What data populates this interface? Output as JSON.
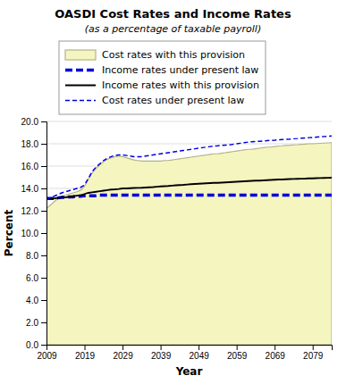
{
  "chart_data": {
    "type": "line",
    "title": "OASDI Cost Rates and Income Rates",
    "subtitle": "(as a percentage of taxable payroll)",
    "xlabel": "Year",
    "ylabel": "Percent",
    "xlim": [
      2009,
      2084
    ],
    "ylim": [
      0.0,
      20.0
    ],
    "xticks": [
      2009,
      2019,
      2029,
      2039,
      2049,
      2059,
      2069,
      2079
    ],
    "yticks": [
      {
        "value": 0.0,
        "label": "0.0"
      },
      {
        "value": 2.0,
        "label": "2.0"
      },
      {
        "value": 4.0,
        "label": "4.0"
      },
      {
        "value": 6.0,
        "label": "6.0"
      },
      {
        "value": 8.0,
        "label": "8.0"
      },
      {
        "value": 10.0,
        "label": "10.0"
      },
      {
        "value": 12.0,
        "label": "12.0"
      },
      {
        "value": 14.0,
        "label": "14.0"
      },
      {
        "value": 16.0,
        "label": "16.0"
      },
      {
        "value": 18.0,
        "label": "18.0"
      },
      {
        "value": 20.0,
        "label": "20.0"
      }
    ],
    "grid": true,
    "legend": "top",
    "x": [
      2009,
      2010,
      2011,
      2012,
      2013,
      2014,
      2015,
      2016,
      2017,
      2018,
      2019,
      2020,
      2021,
      2022,
      2023,
      2024,
      2025,
      2026,
      2027,
      2028,
      2029,
      2030,
      2031,
      2032,
      2033,
      2034,
      2035,
      2036,
      2037,
      2038,
      2039,
      2040,
      2041,
      2042,
      2043,
      2044,
      2045,
      2046,
      2047,
      2048,
      2049,
      2050,
      2051,
      2052,
      2053,
      2054,
      2055,
      2056,
      2057,
      2058,
      2059,
      2060,
      2061,
      2062,
      2063,
      2064,
      2065,
      2066,
      2067,
      2068,
      2069,
      2070,
      2071,
      2072,
      2073,
      2074,
      2075,
      2076,
      2077,
      2078,
      2079,
      2080,
      2081,
      2082,
      2083,
      2084
    ],
    "series": [
      {
        "name": "Cost rates with this provision",
        "type": "area",
        "color": "#f5f5c0",
        "values": [
          12.2,
          12.5,
          12.8,
          13.1,
          13.3,
          13.4,
          13.5,
          13.6,
          13.7,
          13.85,
          14.2,
          14.8,
          15.4,
          15.8,
          16.1,
          16.4,
          16.6,
          16.75,
          16.85,
          16.9,
          16.85,
          16.75,
          16.65,
          16.55,
          16.5,
          16.45,
          16.45,
          16.45,
          16.45,
          16.45,
          16.45,
          16.5,
          16.5,
          16.55,
          16.6,
          16.65,
          16.7,
          16.75,
          16.8,
          16.85,
          16.9,
          16.95,
          17.0,
          17.05,
          17.1,
          17.1,
          17.15,
          17.2,
          17.25,
          17.3,
          17.35,
          17.4,
          17.45,
          17.5,
          17.5,
          17.55,
          17.6,
          17.65,
          17.7,
          17.7,
          17.75,
          17.8,
          17.82,
          17.85,
          17.87,
          17.9,
          17.92,
          17.95,
          17.97,
          18.0,
          18.0,
          18.02,
          18.04,
          18.06,
          18.08,
          18.1
        ]
      },
      {
        "name": "Income rates under present law",
        "type": "line",
        "color": "#0000dd",
        "line_style": "dashed",
        "values": [
          13.1,
          13.1,
          13.1,
          13.15,
          13.2,
          13.2,
          13.25,
          13.25,
          13.3,
          13.3,
          13.35,
          13.35,
          13.35,
          13.35,
          13.4,
          13.4,
          13.4,
          13.4,
          13.4,
          13.4,
          13.4,
          13.4,
          13.4,
          13.4,
          13.4,
          13.4,
          13.4,
          13.4,
          13.4,
          13.4,
          13.4,
          13.4,
          13.4,
          13.4,
          13.4,
          13.4,
          13.4,
          13.4,
          13.4,
          13.4,
          13.4,
          13.4,
          13.4,
          13.4,
          13.4,
          13.4,
          13.4,
          13.4,
          13.4,
          13.4,
          13.4,
          13.4,
          13.4,
          13.4,
          13.4,
          13.4,
          13.4,
          13.4,
          13.4,
          13.4,
          13.4,
          13.4,
          13.4,
          13.4,
          13.4,
          13.4,
          13.4,
          13.4,
          13.4,
          13.4,
          13.4,
          13.4,
          13.4,
          13.4,
          13.4,
          13.4
        ]
      },
      {
        "name": "Income rates with this provision",
        "type": "line",
        "color": "#000000",
        "line_style": "solid",
        "values": [
          13.1,
          13.1,
          13.1,
          13.15,
          13.2,
          13.2,
          13.25,
          13.3,
          13.35,
          13.4,
          13.5,
          13.6,
          13.65,
          13.7,
          13.75,
          13.8,
          13.85,
          13.9,
          13.92,
          13.95,
          14.0,
          14.0,
          14.02,
          14.04,
          14.05,
          14.06,
          14.08,
          14.1,
          14.12,
          14.15,
          14.18,
          14.2,
          14.22,
          14.25,
          14.28,
          14.3,
          14.32,
          14.35,
          14.38,
          14.4,
          14.42,
          14.44,
          14.46,
          14.48,
          14.5,
          14.5,
          14.52,
          14.54,
          14.56,
          14.58,
          14.6,
          14.62,
          14.64,
          14.66,
          14.68,
          14.7,
          14.7,
          14.72,
          14.74,
          14.76,
          14.78,
          14.8,
          14.8,
          14.82,
          14.84,
          14.85,
          14.86,
          14.87,
          14.88,
          14.9,
          14.9,
          14.92,
          14.93,
          14.94,
          14.95,
          14.96
        ]
      },
      {
        "name": "Cost rates under present law",
        "type": "line",
        "color": "#0000dd",
        "line_style": "dashed",
        "values": [
          13.0,
          13.15,
          13.3,
          13.45,
          13.6,
          13.7,
          13.8,
          13.9,
          14.0,
          14.1,
          14.3,
          14.9,
          15.5,
          15.9,
          16.2,
          16.5,
          16.7,
          16.85,
          16.95,
          17.0,
          17.0,
          16.95,
          16.9,
          16.85,
          16.85,
          16.85,
          16.9,
          16.95,
          17.0,
          17.05,
          17.1,
          17.15,
          17.2,
          17.25,
          17.3,
          17.35,
          17.4,
          17.45,
          17.5,
          17.55,
          17.6,
          17.65,
          17.7,
          17.75,
          17.8,
          17.82,
          17.85,
          17.88,
          17.9,
          17.95,
          18.0,
          18.05,
          18.1,
          18.15,
          18.18,
          18.2,
          18.22,
          18.25,
          18.28,
          18.3,
          18.32,
          18.35,
          18.38,
          18.4,
          18.42,
          18.45,
          18.47,
          18.5,
          18.52,
          18.55,
          18.57,
          18.6,
          18.62,
          18.65,
          18.67,
          18.7
        ]
      }
    ]
  }
}
